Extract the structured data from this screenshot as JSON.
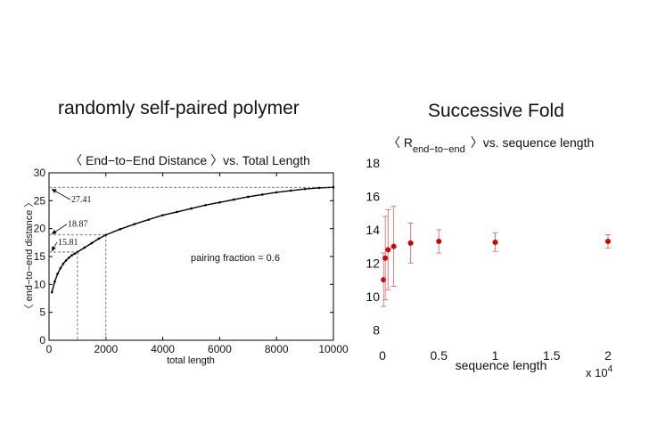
{
  "headings": {
    "left": "randomly self-paired polymer",
    "right": "Successive Fold"
  },
  "chart_data": [
    {
      "type": "line",
      "title": "〈 End−to−End Distance 〉vs. Total Length",
      "xlabel": "total length",
      "ylabel": "〈 end−to−end distance 〉",
      "xlim": [
        0,
        10000
      ],
      "ylim": [
        0,
        30
      ],
      "xticks": [
        "0",
        "2000",
        "4000",
        "6000",
        "8000",
        "10000"
      ],
      "yticks": [
        "0",
        "5",
        "10",
        "15",
        "20",
        "25",
        "30"
      ],
      "grid": false,
      "series": [
        {
          "x": [
            100,
            200,
            300,
            400,
            500,
            600,
            700,
            800,
            900,
            1000,
            1250,
            1500,
            1750,
            2000,
            2500,
            3000,
            3500,
            4000,
            4500,
            5000,
            5500,
            6000,
            6500,
            7000,
            7500,
            8000,
            8500,
            9000,
            9500,
            10000
          ],
          "y": [
            8.6,
            10.5,
            11.9,
            12.9,
            13.7,
            14.3,
            14.8,
            15.2,
            15.5,
            15.81,
            16.6,
            17.4,
            18.2,
            18.87,
            19.9,
            20.8,
            21.6,
            22.4,
            23.0,
            23.6,
            24.2,
            24.7,
            25.2,
            25.7,
            26.1,
            26.5,
            26.8,
            27.1,
            27.3,
            27.41
          ]
        }
      ],
      "annotations": [
        {
          "label": "15.81",
          "x": 1000,
          "y": 15.81
        },
        {
          "label": "18.87",
          "x": 2000,
          "y": 18.87
        },
        {
          "label": "27.41",
          "x": 10000,
          "y": 27.41
        },
        {
          "label": "pairing fraction = 0.6"
        }
      ]
    },
    {
      "type": "scatter",
      "title": "〈 R",
      "title_subscript": "end−to−end",
      "title_suffix": "〉vs. sequence length",
      "xlabel": "sequence length",
      "x_multiplier": "x 10",
      "x_multiplier_exp": "4",
      "xlim": [
        0,
        2
      ],
      "ylim": [
        7,
        18
      ],
      "xticks": [
        "0",
        "0.5",
        "1",
        "1.5",
        "2"
      ],
      "yticks": [
        "8",
        "10",
        "12",
        "14",
        "16",
        "18"
      ],
      "grid": false,
      "marker_color": "#d40000",
      "errorbar_color": "#e07070",
      "series": [
        {
          "x": [
            0.01,
            0.025,
            0.05,
            0.1,
            0.25,
            0.5,
            1.0,
            2.0
          ],
          "y": [
            11.0,
            12.3,
            12.8,
            13.0,
            13.2,
            13.3,
            13.25,
            13.3
          ],
          "err": [
            1.6,
            2.5,
            2.4,
            2.4,
            1.2,
            0.7,
            0.55,
            0.4
          ]
        }
      ]
    }
  ]
}
